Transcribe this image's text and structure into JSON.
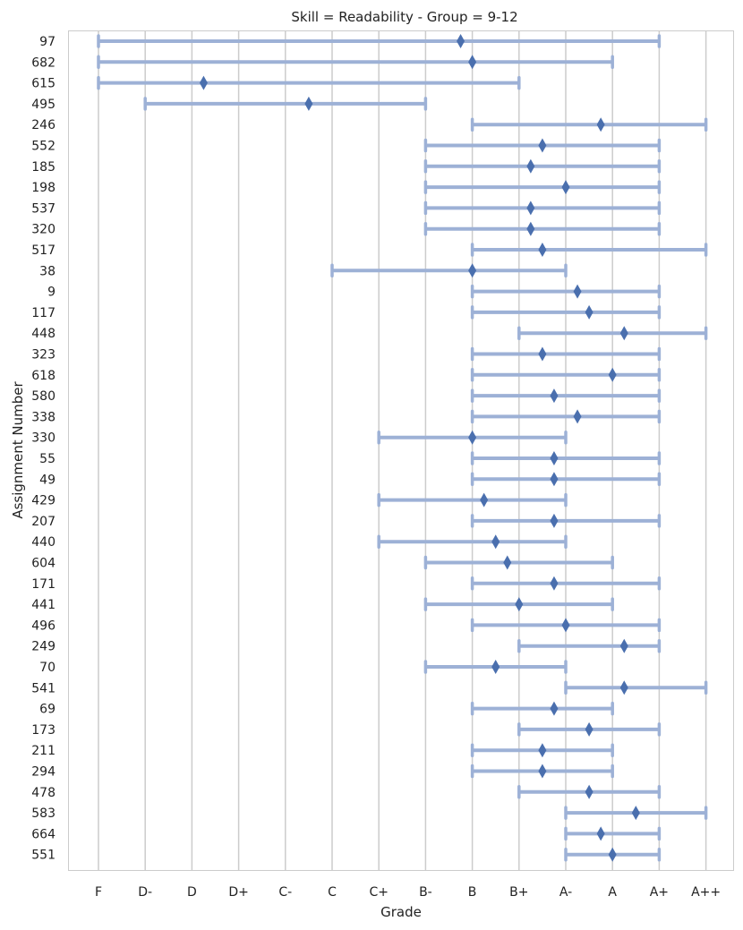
{
  "chart_data": {
    "type": "range",
    "title": "Skill = Readability - Group = 9-12",
    "xlabel": "Grade",
    "ylabel": "Assignment Number",
    "grid": "vertical",
    "categories": [
      "F",
      "D-",
      "D",
      "D+",
      "C-",
      "C",
      "C+",
      "B-",
      "B",
      "B+",
      "A-",
      "A",
      "A+",
      "A++"
    ],
    "colors": {
      "range": "#9db1d6",
      "marker": "#4a6fae",
      "grid": "#cccccc"
    },
    "series": [
      {
        "assignment": "97",
        "min": 0,
        "max": 12,
        "mean": 7.75
      },
      {
        "assignment": "682",
        "min": 0,
        "max": 11,
        "mean": 8.0
      },
      {
        "assignment": "615",
        "min": 0,
        "max": 9,
        "mean": 2.25
      },
      {
        "assignment": "495",
        "min": 1,
        "max": 7,
        "mean": 4.5
      },
      {
        "assignment": "246",
        "min": 8,
        "max": 13,
        "mean": 10.75
      },
      {
        "assignment": "552",
        "min": 7,
        "max": 12,
        "mean": 9.5
      },
      {
        "assignment": "185",
        "min": 7,
        "max": 12,
        "mean": 9.25
      },
      {
        "assignment": "198",
        "min": 7,
        "max": 12,
        "mean": 10.0
      },
      {
        "assignment": "537",
        "min": 7,
        "max": 12,
        "mean": 9.25
      },
      {
        "assignment": "320",
        "min": 7,
        "max": 12,
        "mean": 9.25
      },
      {
        "assignment": "517",
        "min": 8,
        "max": 13,
        "mean": 9.5
      },
      {
        "assignment": "38",
        "min": 5,
        "max": 10,
        "mean": 8.0
      },
      {
        "assignment": "9",
        "min": 8,
        "max": 12,
        "mean": 10.25
      },
      {
        "assignment": "117",
        "min": 8,
        "max": 12,
        "mean": 10.5
      },
      {
        "assignment": "448",
        "min": 9,
        "max": 13,
        "mean": 11.25
      },
      {
        "assignment": "323",
        "min": 8,
        "max": 12,
        "mean": 9.5
      },
      {
        "assignment": "618",
        "min": 8,
        "max": 12,
        "mean": 11.0
      },
      {
        "assignment": "580",
        "min": 8,
        "max": 12,
        "mean": 9.75
      },
      {
        "assignment": "338",
        "min": 8,
        "max": 12,
        "mean": 10.25
      },
      {
        "assignment": "330",
        "min": 6,
        "max": 10,
        "mean": 8.0
      },
      {
        "assignment": "55",
        "min": 8,
        "max": 12,
        "mean": 9.75
      },
      {
        "assignment": "49",
        "min": 8,
        "max": 12,
        "mean": 9.75
      },
      {
        "assignment": "429",
        "min": 6,
        "max": 10,
        "mean": 8.25
      },
      {
        "assignment": "207",
        "min": 8,
        "max": 12,
        "mean": 9.75
      },
      {
        "assignment": "440",
        "min": 6,
        "max": 10,
        "mean": 8.5
      },
      {
        "assignment": "604",
        "min": 7,
        "max": 11,
        "mean": 8.75
      },
      {
        "assignment": "171",
        "min": 8,
        "max": 12,
        "mean": 9.75
      },
      {
        "assignment": "441",
        "min": 7,
        "max": 11,
        "mean": 9.0
      },
      {
        "assignment": "496",
        "min": 8,
        "max": 12,
        "mean": 10.0
      },
      {
        "assignment": "249",
        "min": 9,
        "max": 12,
        "mean": 11.25
      },
      {
        "assignment": "70",
        "min": 7,
        "max": 10,
        "mean": 8.5
      },
      {
        "assignment": "541",
        "min": 10,
        "max": 13,
        "mean": 11.25
      },
      {
        "assignment": "69",
        "min": 8,
        "max": 11,
        "mean": 9.75
      },
      {
        "assignment": "173",
        "min": 9,
        "max": 12,
        "mean": 10.5
      },
      {
        "assignment": "211",
        "min": 8,
        "max": 11,
        "mean": 9.5
      },
      {
        "assignment": "294",
        "min": 8,
        "max": 11,
        "mean": 9.5
      },
      {
        "assignment": "478",
        "min": 9,
        "max": 12,
        "mean": 10.5
      },
      {
        "assignment": "583",
        "min": 10,
        "max": 13,
        "mean": 11.5
      },
      {
        "assignment": "664",
        "min": 10,
        "max": 12,
        "mean": 10.75
      },
      {
        "assignment": "551",
        "min": 10,
        "max": 12,
        "mean": 11.0
      }
    ]
  }
}
